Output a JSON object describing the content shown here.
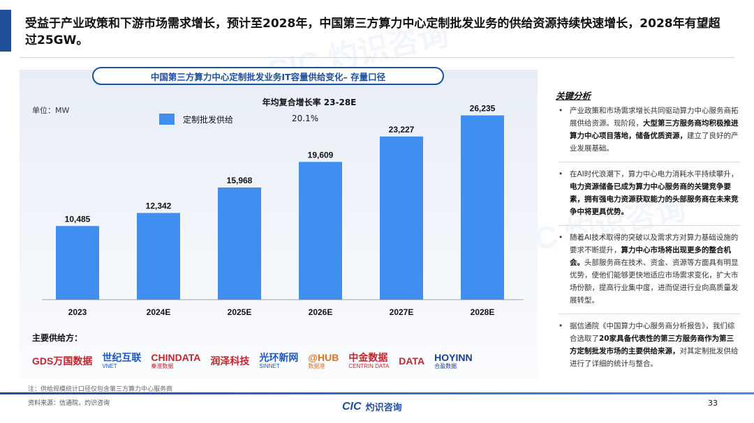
{
  "header": {
    "headline": "受益于产业政策和下游市场需求增长，预计至2028年，中国第三方算力中心定制批发业务的供给资源持续快速增长，2028年有望超过25GW。"
  },
  "chart_data": {
    "type": "bar",
    "title": "中国第三方算力中心定制批发业务IT容量供给变化– 存量口径",
    "unit_label": "单位：MW",
    "categories": [
      "2023",
      "2024E",
      "2025E",
      "2026E",
      "2027E",
      "2028E"
    ],
    "series": [
      {
        "name": "定制批发供给",
        "values": [
          10485,
          12342,
          15968,
          19609,
          23227,
          26235
        ]
      }
    ],
    "data_labels": [
      "10,485",
      "12,342",
      "15,968",
      "19,609",
      "23,227",
      "26,235"
    ],
    "cagr": {
      "label": "年均复合增长率 23-28E",
      "value": "20.1%"
    },
    "ylim": [
      0,
      30000
    ],
    "grid": false,
    "legend": "top-left",
    "bar_color": "#3f8ef0"
  },
  "suppliers": {
    "label": "主要供给方：",
    "logos": [
      {
        "big": "GDS万国数据",
        "small": "",
        "color": "#c0262d",
        "icon": "gds-logo-icon"
      },
      {
        "big": "世纪互联",
        "small": "VNET",
        "color": "#1a56c4",
        "icon": "vnet-logo-icon"
      },
      {
        "big": "CHINDATA",
        "small": "秦淮数据",
        "color": "#c0262d",
        "icon": "chindata-logo-icon"
      },
      {
        "big": "润泽科技",
        "small": "",
        "color": "#c0262d",
        "icon": "runze-logo-icon"
      },
      {
        "big": "光环新网",
        "small": "SINNET",
        "color": "#1a56c4",
        "icon": "sinnet-logo-icon"
      },
      {
        "big": "@HUB",
        "small": "数据港",
        "color": "#e0731f",
        "icon": "athub-logo-icon"
      },
      {
        "big": "中金数据",
        "small": "CENTRIN DATA",
        "color": "#c0262d",
        "icon": "centrin-logo-icon"
      },
      {
        "big": "DATA",
        "small": "",
        "color": "#c0262d",
        "icon": "zdata-logo-icon"
      },
      {
        "big": "HOYINN",
        "small": "合盈数据",
        "color": "#1a3d8c",
        "icon": "hoyinn-logo-icon"
      }
    ]
  },
  "analysis": {
    "title": "关键分析",
    "bullets": [
      {
        "normal": "产业政策和市场需求增长共同驱动算力中心服务商拓展供给资源。现阶段，",
        "bold": "大型第三方服务商均积极推进算力中心项目落地，储备优质资源，",
        "tail": "建立了良好的产业发展基础。"
      },
      {
        "normal": "在AI时代浪潮下，算力中心电力消耗水平持续攀升，",
        "bold": "电力资源储备已成为算力中心服务商的关键竞争要素，拥有强电力资源获取能力的头部服务商在未来竞争中将更具优势。",
        "tail": ""
      },
      {
        "normal": "随着AI技术取得的突破以及需求方对算力基础设施的要求不断提升，",
        "bold": "算力中心市场将出现更多的整合机会。",
        "tail": "头部服务商在技术、资金、资源等方面具有明显优势，使他们能够更快地适应市场需求变化，扩大市场份额，提高行业集中度，进而促进行业向高质量发展转型。"
      },
      {
        "normal": "据信通院《中国算力中心服务商分析报告》，我们综合选取了",
        "bold": "20家具备代表性的第三方服务商作为第三方定制批发市场的主要供给来源，",
        "tail": "对其定制批发供给进行了详细的统计与整合。"
      }
    ]
  },
  "footer": {
    "note": "注：供给规模统计口径仅包含第三方算力中心服务商",
    "source": "资料来源：信通院，灼识咨询",
    "logo_latin": "CIC",
    "logo_cn": "灼识咨询",
    "page": "33"
  },
  "colors": {
    "brand": "#1f4e9b",
    "bar": "#3f8ef0"
  }
}
